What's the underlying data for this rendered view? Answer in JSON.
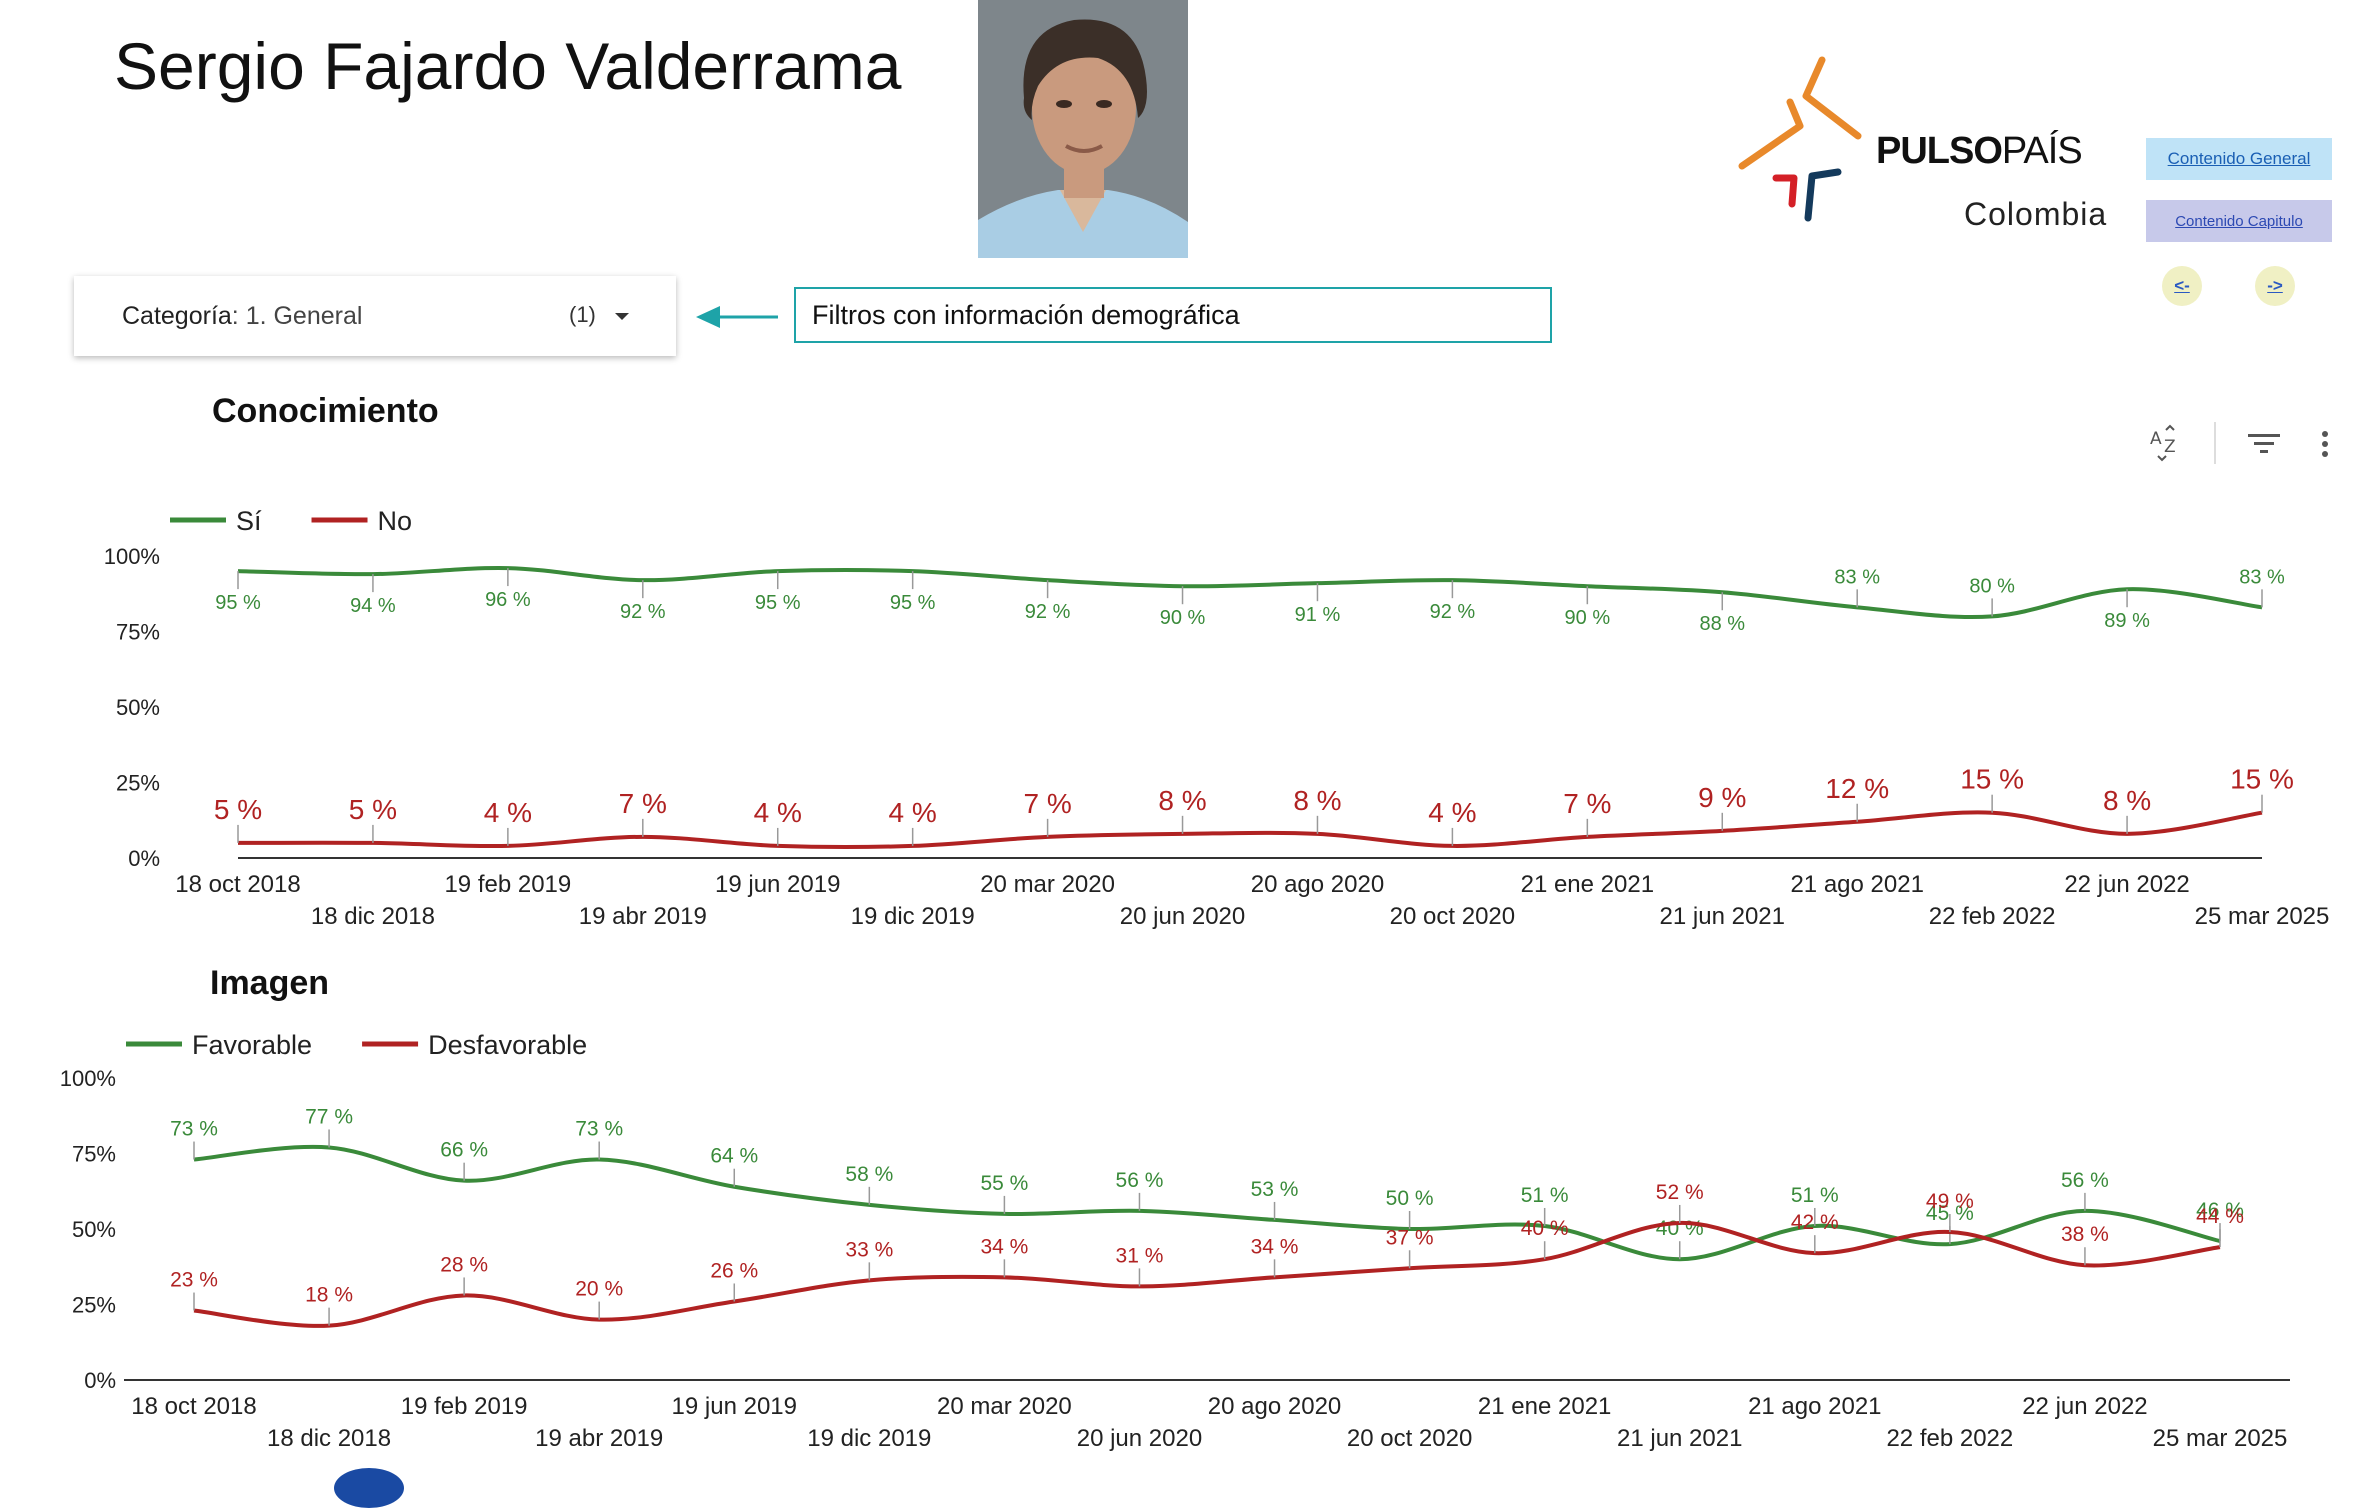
{
  "header": {
    "title": "Sergio Fajardo Valderrama",
    "logo": {
      "brand_bold": "PULSO",
      "brand_thin": "PAÍS",
      "country": "Colombia"
    },
    "nav": {
      "general": "Contenido General",
      "capitulo": "Contenido Capitulo",
      "prev": "<-",
      "next": "->"
    }
  },
  "filter": {
    "label_key": "Categoría",
    "label_value": ": 1. General",
    "count": "(1)"
  },
  "note": "Filtros con información demográfica",
  "chart_data": [
    {
      "type": "line",
      "title": "Conocimiento",
      "categories": [
        "18 oct 2018",
        "18 dic 2018",
        "19 feb 2019",
        "19 abr 2019",
        "19 jun 2019",
        "19 dic 2019",
        "20 mar 2020",
        "20 jun 2020",
        "20 ago 2020",
        "20 oct 2020",
        "21 ene 2021",
        "21 jun 2021",
        "21 ago 2021",
        "22 feb 2022",
        "22 jun 2022",
        "25 mar 2025"
      ],
      "y_ticks": [
        "100%",
        "75%",
        "50%",
        "25%",
        "0%"
      ],
      "ylim": [
        0,
        100
      ],
      "legend_position": "top-left",
      "grid": false,
      "series": [
        {
          "name": "Sí",
          "color": "#3a8a3a",
          "values": [
            95,
            94,
            96,
            92,
            95,
            95,
            92,
            90,
            91,
            92,
            90,
            88,
            83,
            80,
            89,
            83
          ],
          "labels": [
            "95 %",
            "94 %",
            "96 %",
            "92 %",
            "95 %",
            "95 %",
            "92 %",
            "90 %",
            "91 %",
            "92 %",
            "90 %",
            "88 %",
            "83 %",
            "80 %",
            "89 %",
            "83 %"
          ]
        },
        {
          "name": "No",
          "color": "#b02222",
          "values": [
            5,
            5,
            4,
            7,
            4,
            4,
            7,
            8,
            8,
            4,
            7,
            9,
            12,
            15,
            8,
            15
          ],
          "labels": [
            "5 %",
            "5 %",
            "4 %",
            "7 %",
            "4 %",
            "4 %",
            "7 %",
            "8 %",
            "8 %",
            "4 %",
            "7 %",
            "9 %",
            "12 %",
            "15 %",
            "8 %",
            "15 %"
          ]
        }
      ]
    },
    {
      "type": "line",
      "title": "Imagen",
      "categories": [
        "18 oct 2018",
        "18 dic 2018",
        "19 feb 2019",
        "19 abr 2019",
        "19 jun 2019",
        "19 dic 2019",
        "20 mar 2020",
        "20 jun 2020",
        "20 ago 2020",
        "20 oct 2020",
        "21 ene 2021",
        "21 jun 2021",
        "21 ago 2021",
        "22 feb 2022",
        "22 jun 2022",
        "25 mar 2025"
      ],
      "y_ticks": [
        "100%",
        "75%",
        "50%",
        "25%",
        "0%"
      ],
      "ylim": [
        0,
        100
      ],
      "legend_position": "top-left",
      "grid": false,
      "series": [
        {
          "name": "Favorable",
          "color": "#3a8a3a",
          "values": [
            73,
            77,
            66,
            73,
            64,
            58,
            55,
            56,
            53,
            50,
            51,
            40,
            51,
            45,
            56,
            46
          ],
          "labels": [
            "73 %",
            "77 %",
            "66 %",
            "73 %",
            "64 %",
            "58 %",
            "55 %",
            "56 %",
            "53 %",
            "50 %",
            "51 %",
            "40 %",
            "51 %",
            "45 %",
            "56 %",
            "46 %"
          ]
        },
        {
          "name": "Desfavorable",
          "color": "#b02222",
          "values": [
            23,
            18,
            28,
            20,
            26,
            33,
            34,
            31,
            34,
            37,
            40,
            52,
            42,
            49,
            38,
            44
          ],
          "labels": [
            "23 %",
            "18 %",
            "28 %",
            "20 %",
            "26 %",
            "33 %",
            "34 %",
            "31 %",
            "34 %",
            "37 %",
            "40 %",
            "52 %",
            "42 %",
            "49 %",
            "38 %",
            "44 %"
          ]
        }
      ]
    }
  ]
}
